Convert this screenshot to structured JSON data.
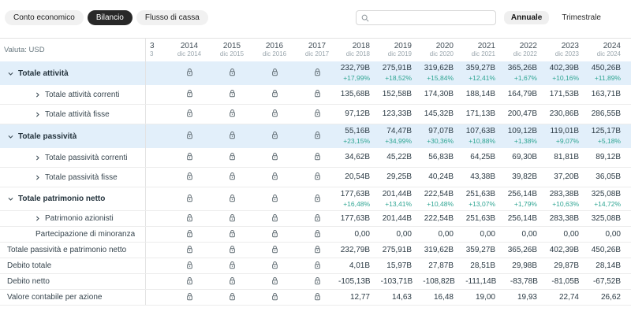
{
  "tabs": [
    {
      "label": "Conto economico",
      "active": false
    },
    {
      "label": "Bilancio",
      "active": true
    },
    {
      "label": "Flusso di cassa",
      "active": false
    }
  ],
  "controls": {
    "search_placeholder": "",
    "period_toggle": [
      {
        "label": "Annuale",
        "active": true
      },
      {
        "label": "Trimestrale",
        "active": false
      }
    ]
  },
  "icons": {
    "search": "magnifier-icon",
    "locked_column": "lock-icon",
    "expanded_row": "chevron-down-icon",
    "collapsed_row": "chevron-right-icon"
  },
  "colors": {
    "highlight_row": "#e2effa",
    "positive_change": "#2fa593",
    "active_tab_bg": "#282828",
    "active_tab_text": "#ffffff"
  },
  "table": {
    "currency_label": "Valuta: USD",
    "clipped_column": {
      "year_fragment": "3",
      "period_fragment": "3"
    },
    "locked_columns": [
      {
        "year": "2014",
        "period": "dic 2014"
      },
      {
        "year": "2015",
        "period": "dic 2015"
      },
      {
        "year": "2016",
        "period": "dic 2016"
      },
      {
        "year": "2017",
        "period": "dic 2017"
      }
    ],
    "value_columns": [
      {
        "year": "2018",
        "period": "dic 2018"
      },
      {
        "year": "2019",
        "period": "dic 2019"
      },
      {
        "year": "2020",
        "period": "dic 2020"
      },
      {
        "year": "2021",
        "period": "dic 2021"
      },
      {
        "year": "2022",
        "period": "dic 2022"
      },
      {
        "year": "2023",
        "period": "dic 2023"
      },
      {
        "year": "2024",
        "period": "dic 2024"
      }
    ],
    "rows": [
      {
        "label": "Totale attività",
        "style": "main",
        "size": "tall",
        "highlight": true,
        "chevron": "down",
        "values": [
          "232,79B",
          "275,91B",
          "319,62B",
          "359,27B",
          "365,26B",
          "402,39B",
          "450,26B"
        ],
        "changes": [
          "+17,99%",
          "+18,52%",
          "+15,84%",
          "+12,41%",
          "+1,67%",
          "+10,16%",
          "+11,89%"
        ]
      },
      {
        "label": "Totale attività correnti",
        "style": "sub",
        "size": "mid",
        "chevron": "right",
        "values": [
          "135,68B",
          "152,58B",
          "174,30B",
          "188,14B",
          "164,79B",
          "171,53B",
          "163,71B"
        ]
      },
      {
        "label": "Totale attività fisse",
        "style": "sub",
        "size": "mid",
        "chevron": "right",
        "values": [
          "97,12B",
          "123,33B",
          "145,32B",
          "171,13B",
          "200,47B",
          "230,86B",
          "286,55B"
        ]
      },
      {
        "label": "Totale passività",
        "style": "main",
        "size": "tall",
        "highlight": true,
        "chevron": "down",
        "values": [
          "55,16B",
          "74,47B",
          "97,07B",
          "107,63B",
          "109,12B",
          "119,01B",
          "125,17B"
        ],
        "changes": [
          "+23,15%",
          "+34,99%",
          "+30,36%",
          "+10,88%",
          "+1,38%",
          "+9,07%",
          "+5,18%"
        ]
      },
      {
        "label": "Totale passività correnti",
        "style": "sub",
        "size": "mid",
        "chevron": "right",
        "values": [
          "34,62B",
          "45,22B",
          "56,83B",
          "64,25B",
          "69,30B",
          "81,81B",
          "89,12B"
        ]
      },
      {
        "label": "Totale passività fisse",
        "style": "sub",
        "size": "mid",
        "chevron": "right",
        "values": [
          "20,54B",
          "29,25B",
          "40,24B",
          "43,38B",
          "39,82B",
          "37,20B",
          "36,05B"
        ]
      },
      {
        "label": "Totale patrimonio netto",
        "style": "main",
        "size": "tall",
        "chevron": "down",
        "values": [
          "177,63B",
          "201,44B",
          "222,54B",
          "251,63B",
          "256,14B",
          "283,38B",
          "325,08B"
        ],
        "changes": [
          "+16,48%",
          "+13,41%",
          "+10,48%",
          "+13,07%",
          "+1,79%",
          "+10,63%",
          "+14,72%"
        ]
      },
      {
        "label": "Patrimonio azionisti",
        "style": "sub",
        "size": "short",
        "chevron": "right",
        "values": [
          "177,63B",
          "201,44B",
          "222,54B",
          "251,63B",
          "256,14B",
          "283,38B",
          "325,08B"
        ]
      },
      {
        "label": "Partecipazione di minoranza",
        "style": "sub-noc",
        "size": "short",
        "values": [
          "0,00",
          "0,00",
          "0,00",
          "0,00",
          "0,00",
          "0,00",
          "0,00"
        ]
      },
      {
        "label": "Totale passività e patrimonio netto",
        "style": "plain",
        "size": "short",
        "values": [
          "232,79B",
          "275,91B",
          "319,62B",
          "359,27B",
          "365,26B",
          "402,39B",
          "450,26B"
        ]
      },
      {
        "label": "Debito totale",
        "style": "plain",
        "size": "short",
        "values": [
          "4,01B",
          "15,97B",
          "27,87B",
          "28,51B",
          "29,98B",
          "29,87B",
          "28,14B"
        ]
      },
      {
        "label": "Debito netto",
        "style": "plain",
        "size": "short",
        "values": [
          "-105,13B",
          "-103,71B",
          "-108,82B",
          "-111,14B",
          "-83,78B",
          "-81,05B",
          "-67,52B"
        ]
      },
      {
        "label": "Valore contabile per azione",
        "style": "plain",
        "size": "short",
        "values": [
          "12,77",
          "14,63",
          "16,48",
          "19,00",
          "19,93",
          "22,74",
          "26,62"
        ]
      }
    ]
  }
}
